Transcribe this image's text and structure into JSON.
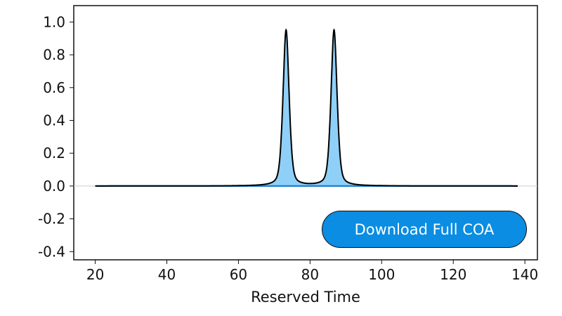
{
  "chart_data": {
    "type": "area",
    "title": "",
    "xlabel": "Reserved Time",
    "ylabel": "",
    "xlim": [
      14,
      143.5
    ],
    "ylim": [
      -0.45,
      1.1
    ],
    "xticks": [
      20,
      40,
      60,
      80,
      100,
      120,
      140
    ],
    "yticks": [
      1.0,
      0.8,
      0.6,
      0.4,
      0.2,
      0.0,
      -0.2,
      -0.4
    ],
    "ytick_labels": [
      "1.0",
      "0.8",
      "0.6",
      "0.4",
      "0.2",
      "0.0",
      "-0.2",
      "-0.4"
    ],
    "x_range": [
      20,
      138
    ],
    "peaks": [
      {
        "center": 73.3,
        "height": 0.95,
        "width": 0.9
      },
      {
        "center": 86.7,
        "height": 0.95,
        "width": 0.9
      }
    ],
    "baseline": 0.0,
    "grid": false,
    "line_color": "#000000",
    "fill_color": "#8fd0f8",
    "baseline_color": "#1f7fd0"
  },
  "button": {
    "label": "Download Full COA",
    "color": "#0a8de2"
  }
}
